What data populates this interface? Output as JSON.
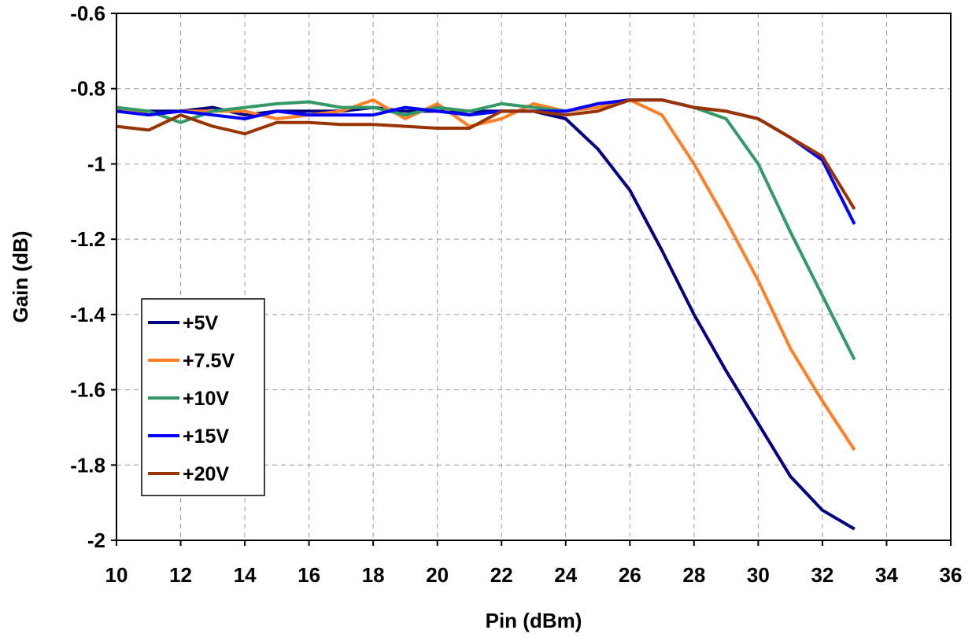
{
  "chart_data": {
    "type": "line",
    "title": "",
    "xlabel": "Pin (dBm)",
    "ylabel": "Gain (dB)",
    "xlim": [
      10,
      36
    ],
    "ylim": [
      -2,
      -0.6
    ],
    "xticks": [
      10,
      12,
      14,
      16,
      18,
      20,
      22,
      24,
      26,
      28,
      30,
      32,
      34,
      36
    ],
    "yticks": [
      -2,
      -1.8,
      -1.6,
      -1.4,
      -1.2,
      -1,
      -0.8,
      -0.6
    ],
    "xtick_labels": [
      "10",
      "12",
      "14",
      "16",
      "18",
      "20",
      "22",
      "24",
      "26",
      "28",
      "30",
      "32",
      "34",
      "36"
    ],
    "ytick_labels": [
      "-2",
      "-1.8",
      "-1.6",
      "-1.4",
      "-1.2",
      "-1",
      "-0.8",
      "-0.6"
    ],
    "grid": true,
    "legend_position": "lower-left",
    "x": [
      10,
      11,
      12,
      13,
      14,
      15,
      16,
      17,
      18,
      19,
      20,
      21,
      22,
      23,
      24,
      25,
      26,
      27,
      28,
      29,
      30,
      31,
      32,
      33
    ],
    "series": [
      {
        "name": "+5V",
        "color": "#000080",
        "values": [
          -0.86,
          -0.86,
          -0.86,
          -0.85,
          -0.87,
          -0.86,
          -0.86,
          -0.86,
          -0.85,
          -0.86,
          -0.86,
          -0.86,
          -0.86,
          -0.86,
          -0.88,
          -0.96,
          -1.07,
          -1.23,
          -1.4,
          -1.55,
          -1.69,
          -1.83,
          -1.92,
          -1.97
        ]
      },
      {
        "name": "+7.5V",
        "color": "#FF7F27",
        "values": [
          -0.85,
          -0.87,
          -0.86,
          -0.86,
          -0.86,
          -0.88,
          -0.87,
          -0.86,
          -0.83,
          -0.88,
          -0.84,
          -0.9,
          -0.88,
          -0.84,
          -0.86,
          -0.85,
          -0.83,
          -0.87,
          -1.0,
          -1.15,
          -1.31,
          -1.49,
          -1.63,
          -1.76
        ]
      },
      {
        "name": "+10V",
        "color": "#339966",
        "values": [
          -0.85,
          -0.86,
          -0.89,
          -0.86,
          -0.85,
          -0.84,
          -0.835,
          -0.85,
          -0.85,
          -0.87,
          -0.85,
          -0.86,
          -0.84,
          -0.85,
          -0.86,
          -0.84,
          -0.83,
          -0.83,
          -0.85,
          -0.88,
          -1.0,
          -1.18,
          -1.35,
          -1.52
        ]
      },
      {
        "name": "+15V",
        "color": "#0000FF",
        "values": [
          -0.86,
          -0.87,
          -0.86,
          -0.87,
          -0.88,
          -0.86,
          -0.87,
          -0.87,
          -0.87,
          -0.85,
          -0.86,
          -0.87,
          -0.86,
          -0.86,
          -0.86,
          -0.84,
          -0.83,
          -0.83,
          -0.85,
          -0.86,
          -0.88,
          -0.93,
          -0.99,
          -1.16
        ]
      },
      {
        "name": "+20V",
        "color": "#993300",
        "values": [
          -0.9,
          -0.91,
          -0.87,
          -0.9,
          -0.92,
          -0.89,
          -0.89,
          -0.895,
          -0.895,
          -0.9,
          -0.905,
          -0.905,
          -0.86,
          -0.86,
          -0.87,
          -0.86,
          -0.83,
          -0.83,
          -0.85,
          -0.86,
          -0.88,
          -0.93,
          -0.98,
          -1.12
        ]
      }
    ]
  }
}
